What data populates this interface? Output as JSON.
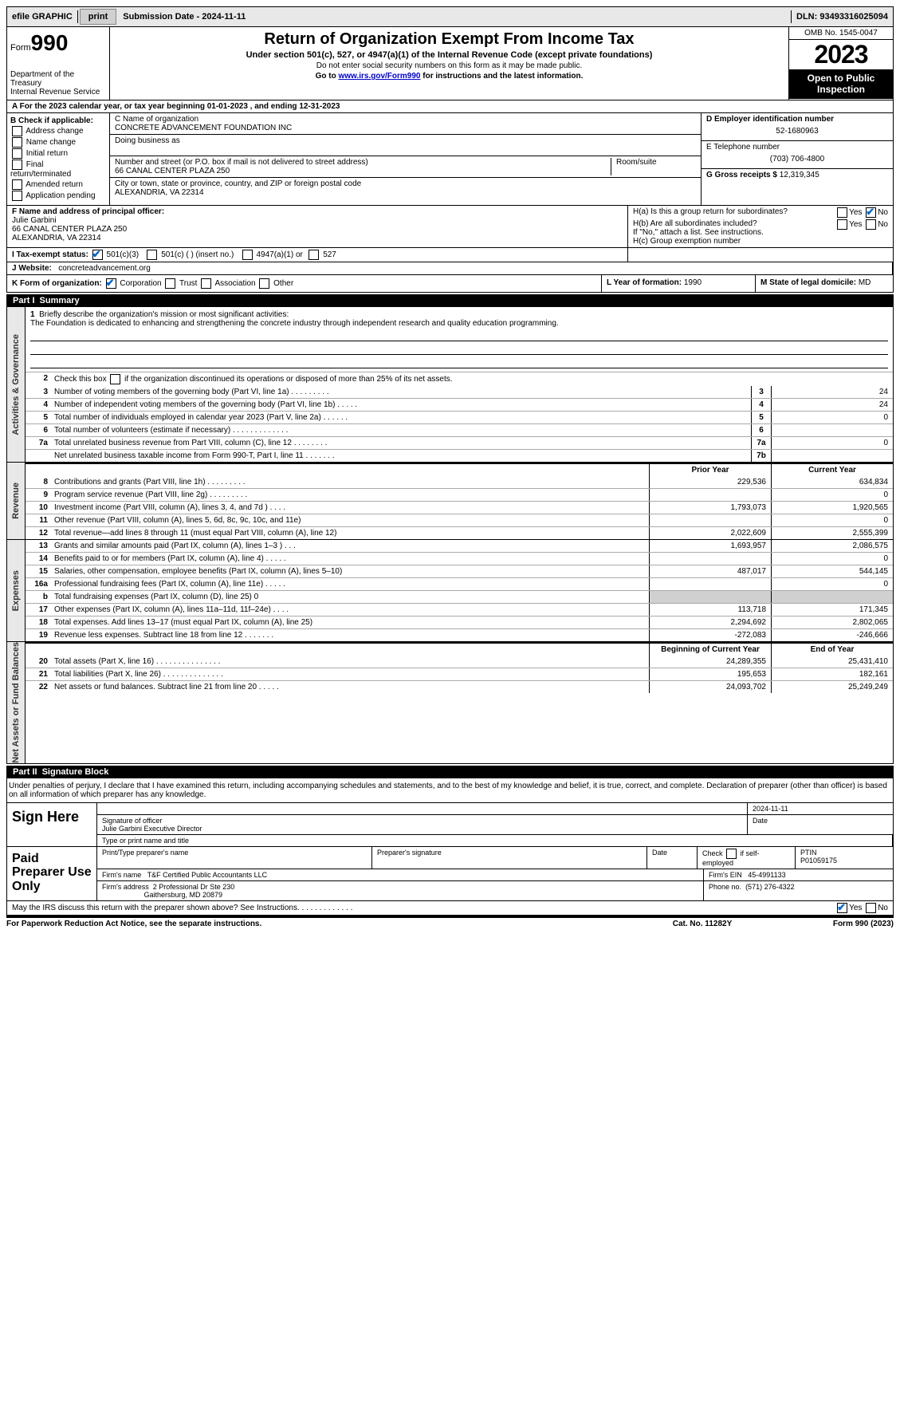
{
  "topbar": {
    "efile": "efile GRAPHIC",
    "print": "print",
    "submission": "Submission Date - 2024-11-11",
    "dln": "DLN: 93493316025094"
  },
  "header": {
    "form_prefix": "Form",
    "form_num": "990",
    "dept": "Department of the Treasury",
    "irs": "Internal Revenue Service",
    "title": "Return of Organization Exempt From Income Tax",
    "sub": "Under section 501(c), 527, or 4947(a)(1) of the Internal Revenue Code (except private foundations)",
    "note1": "Do not enter social security numbers on this form as it may be made public.",
    "note2_pre": "Go to ",
    "note2_link": "www.irs.gov/Form990",
    "note2_post": " for instructions and the latest information.",
    "omb": "OMB No. 1545-0047",
    "year": "2023",
    "open": "Open to Public Inspection"
  },
  "row_a": "A  For the 2023 calendar year, or tax year beginning 01-01-2023   , and ending 12-31-2023",
  "box_b": {
    "title": "B Check if applicable:",
    "items": [
      "Address change",
      "Name change",
      "Initial return",
      "Final return/terminated",
      "Amended return",
      "Application pending"
    ]
  },
  "box_c": {
    "name_lbl": "C Name of organization",
    "name": "CONCRETE ADVANCEMENT FOUNDATION INC",
    "dba_lbl": "Doing business as",
    "street_lbl": "Number and street (or P.O. box if mail is not delivered to street address)",
    "room_lbl": "Room/suite",
    "street": "66 CANAL CENTER PLAZA 250",
    "city_lbl": "City or town, state or province, country, and ZIP or foreign postal code",
    "city": "ALEXANDRIA, VA  22314"
  },
  "box_d": {
    "ein_lbl": "D Employer identification number",
    "ein": "52-1680963",
    "tel_lbl": "E Telephone number",
    "tel": "(703) 706-4800",
    "gross_lbl": "G Gross receipts $",
    "gross": "12,319,345"
  },
  "box_f": {
    "lbl": "F  Name and address of principal officer:",
    "name": "Julie Garbini",
    "addr1": "66 CANAL CENTER PLAZA 250",
    "addr2": "ALEXANDRIA, VA  22314"
  },
  "box_h": {
    "a": "H(a)  Is this a group return for subordinates?",
    "b": "H(b)  Are all subordinates included?",
    "b_note": "If \"No,\" attach a list. See instructions.",
    "c": "H(c)  Group exemption number",
    "yes": "Yes",
    "no": "No"
  },
  "box_i": {
    "lbl": "I    Tax-exempt status:",
    "c3": "501(c)(3)",
    "c": "501(c) (  ) (insert no.)",
    "a1": "4947(a)(1) or",
    "s527": "527"
  },
  "box_j": {
    "lbl": "J   Website:",
    "val": "concreteadvancement.org"
  },
  "box_k": {
    "lbl": "K Form of organization:",
    "corp": "Corporation",
    "trust": "Trust",
    "assoc": "Association",
    "other": "Other"
  },
  "box_l": {
    "lbl": "L Year of formation:",
    "val": "1990"
  },
  "box_m": {
    "lbl": "M State of legal domicile:",
    "val": "MD"
  },
  "part1": {
    "num": "Part I",
    "title": "Summary"
  },
  "mission": {
    "num": "1",
    "lbl": "Briefly describe the organization's mission or most significant activities:",
    "text": "The Foundation is dedicated to enhancing and strengthening the concrete industry through independent research and quality education programming."
  },
  "line2": {
    "num": "2",
    "text": "Check this box       if the organization discontinued its operations or disposed of more than 25% of its net assets."
  },
  "govlines": [
    {
      "n": "3",
      "d": "Number of voting members of the governing body (Part VI, line 1a)   .    .    .    .    .    .    .    .    .",
      "b": "3",
      "v": "24"
    },
    {
      "n": "4",
      "d": "Number of independent voting members of the governing body (Part VI, line 1b)   .    .    .    .    .",
      "b": "4",
      "v": "24"
    },
    {
      "n": "5",
      "d": "Total number of individuals employed in calendar year 2023 (Part V, line 2a)   .    .    .    .    .    .",
      "b": "5",
      "v": "0"
    },
    {
      "n": "6",
      "d": "Total number of volunteers (estimate if necessary)   .    .    .    .    .    .    .    .    .    .    .    .    .",
      "b": "6",
      "v": ""
    },
    {
      "n": "7a",
      "d": "Total unrelated business revenue from Part VIII, column (C), line 12   .    .    .    .    .    .    .    .",
      "b": "7a",
      "v": "0"
    },
    {
      "n": "",
      "d": "Net unrelated business taxable income from Form 990-T, Part I, line 11   .    .    .    .    .    .    .",
      "b": "7b",
      "v": ""
    }
  ],
  "col_hdr": {
    "prior": "Prior Year",
    "current": "Current Year"
  },
  "revenue_tab": "Revenue",
  "revenue": [
    {
      "n": "8",
      "d": "Contributions and grants (Part VIII, line 1h)   .    .    .    .    .    .    .    .    .",
      "p": "229,536",
      "c": "634,834"
    },
    {
      "n": "9",
      "d": "Program service revenue (Part VIII, line 2g)   .    .    .    .    .    .    .    .    .",
      "p": "",
      "c": "0"
    },
    {
      "n": "10",
      "d": "Investment income (Part VIII, column (A), lines 3, 4, and 7d )   .    .    .    .",
      "p": "1,793,073",
      "c": "1,920,565"
    },
    {
      "n": "11",
      "d": "Other revenue (Part VIII, column (A), lines 5, 6d, 8c, 9c, 10c, and 11e)",
      "p": "",
      "c": "0"
    },
    {
      "n": "12",
      "d": "Total revenue—add lines 8 through 11 (must equal Part VIII, column (A), line 12)",
      "p": "2,022,609",
      "c": "2,555,399"
    }
  ],
  "expenses_tab": "Expenses",
  "expenses": [
    {
      "n": "13",
      "d": "Grants and similar amounts paid (Part IX, column (A), lines 1–3 )   .    .    .",
      "p": "1,693,957",
      "c": "2,086,575"
    },
    {
      "n": "14",
      "d": "Benefits paid to or for members (Part IX, column (A), line 4)   .    .    .    .    .",
      "p": "",
      "c": "0"
    },
    {
      "n": "15",
      "d": "Salaries, other compensation, employee benefits (Part IX, column (A), lines 5–10)",
      "p": "487,017",
      "c": "544,145"
    },
    {
      "n": "16a",
      "d": "Professional fundraising fees (Part IX, column (A), line 11e)   .    .    .    .    .",
      "p": "",
      "c": "0"
    },
    {
      "n": "b",
      "d": "Total fundraising expenses (Part IX, column (D), line 25) 0",
      "p": "__shade__",
      "c": "__shade__"
    },
    {
      "n": "17",
      "d": "Other expenses (Part IX, column (A), lines 11a–11d, 11f–24e)   .    .    .    .",
      "p": "113,718",
      "c": "171,345"
    },
    {
      "n": "18",
      "d": "Total expenses. Add lines 13–17 (must equal Part IX, column (A), line 25)",
      "p": "2,294,692",
      "c": "2,802,065"
    },
    {
      "n": "19",
      "d": "Revenue less expenses. Subtract line 18 from line 12   .    .    .    .    .    .    .",
      "p": "-272,083",
      "c": "-246,666"
    }
  ],
  "net_tab": "Net Assets or Fund Balances",
  "net_hdr": {
    "begin": "Beginning of Current Year",
    "end": "End of Year"
  },
  "net": [
    {
      "n": "20",
      "d": "Total assets (Part X, line 16)   .    .    .    .    .    .    .    .    .    .    .    .    .    .    .",
      "p": "24,289,355",
      "c": "25,431,410"
    },
    {
      "n": "21",
      "d": "Total liabilities (Part X, line 26)   .    .    .    .    .    .    .    .    .    .    .    .    .    .",
      "p": "195,653",
      "c": "182,161"
    },
    {
      "n": "22",
      "d": "Net assets or fund balances. Subtract line 21 from line 20   .    .    .    .    .",
      "p": "24,093,702",
      "c": "25,249,249"
    }
  ],
  "part2": {
    "num": "Part II",
    "title": "Signature Block"
  },
  "sig_intro": "Under penalties of perjury, I declare that I have examined this return, including accompanying schedules and statements, and to the best of my knowledge and belief, it is true, correct, and complete. Declaration of preparer (other than officer) is based on all information of which preparer has any knowledge.",
  "sign": {
    "here": "Sign Here",
    "sig_lbl": "Signature of officer",
    "officer": "Julie Garbini  Executive Director",
    "type_lbl": "Type or print name and title",
    "date_lbl": "Date",
    "date": "2024-11-11"
  },
  "prep": {
    "here": "Paid Preparer Use Only",
    "name_lbl": "Print/Type preparer's name",
    "sig_lbl": "Preparer's signature",
    "date_lbl": "Date",
    "check_lbl": "Check       if self-employed",
    "ptin_lbl": "PTIN",
    "ptin": "P01059175",
    "firm_name_lbl": "Firm's name",
    "firm_name": "T&F Certified Public Accountants LLC",
    "firm_ein_lbl": "Firm's EIN",
    "firm_ein": "45-4991133",
    "firm_addr_lbl": "Firm's address",
    "firm_addr1": "2 Professional Dr Ste 230",
    "firm_addr2": "Gaithersburg, MD  20879",
    "phone_lbl": "Phone no.",
    "phone": "(571) 276-4322"
  },
  "discuss": {
    "q": "May the IRS discuss this return with the preparer shown above? See Instructions.   .    .    .    .    .    .    .    .    .    .    .    .",
    "yes": "Yes",
    "no": "No"
  },
  "footer": {
    "pra": "For Paperwork Reduction Act Notice, see the separate instructions.",
    "cat": "Cat. No. 11282Y",
    "form": "Form 990 (2023)"
  },
  "gov_tab": "Activities & Governance"
}
